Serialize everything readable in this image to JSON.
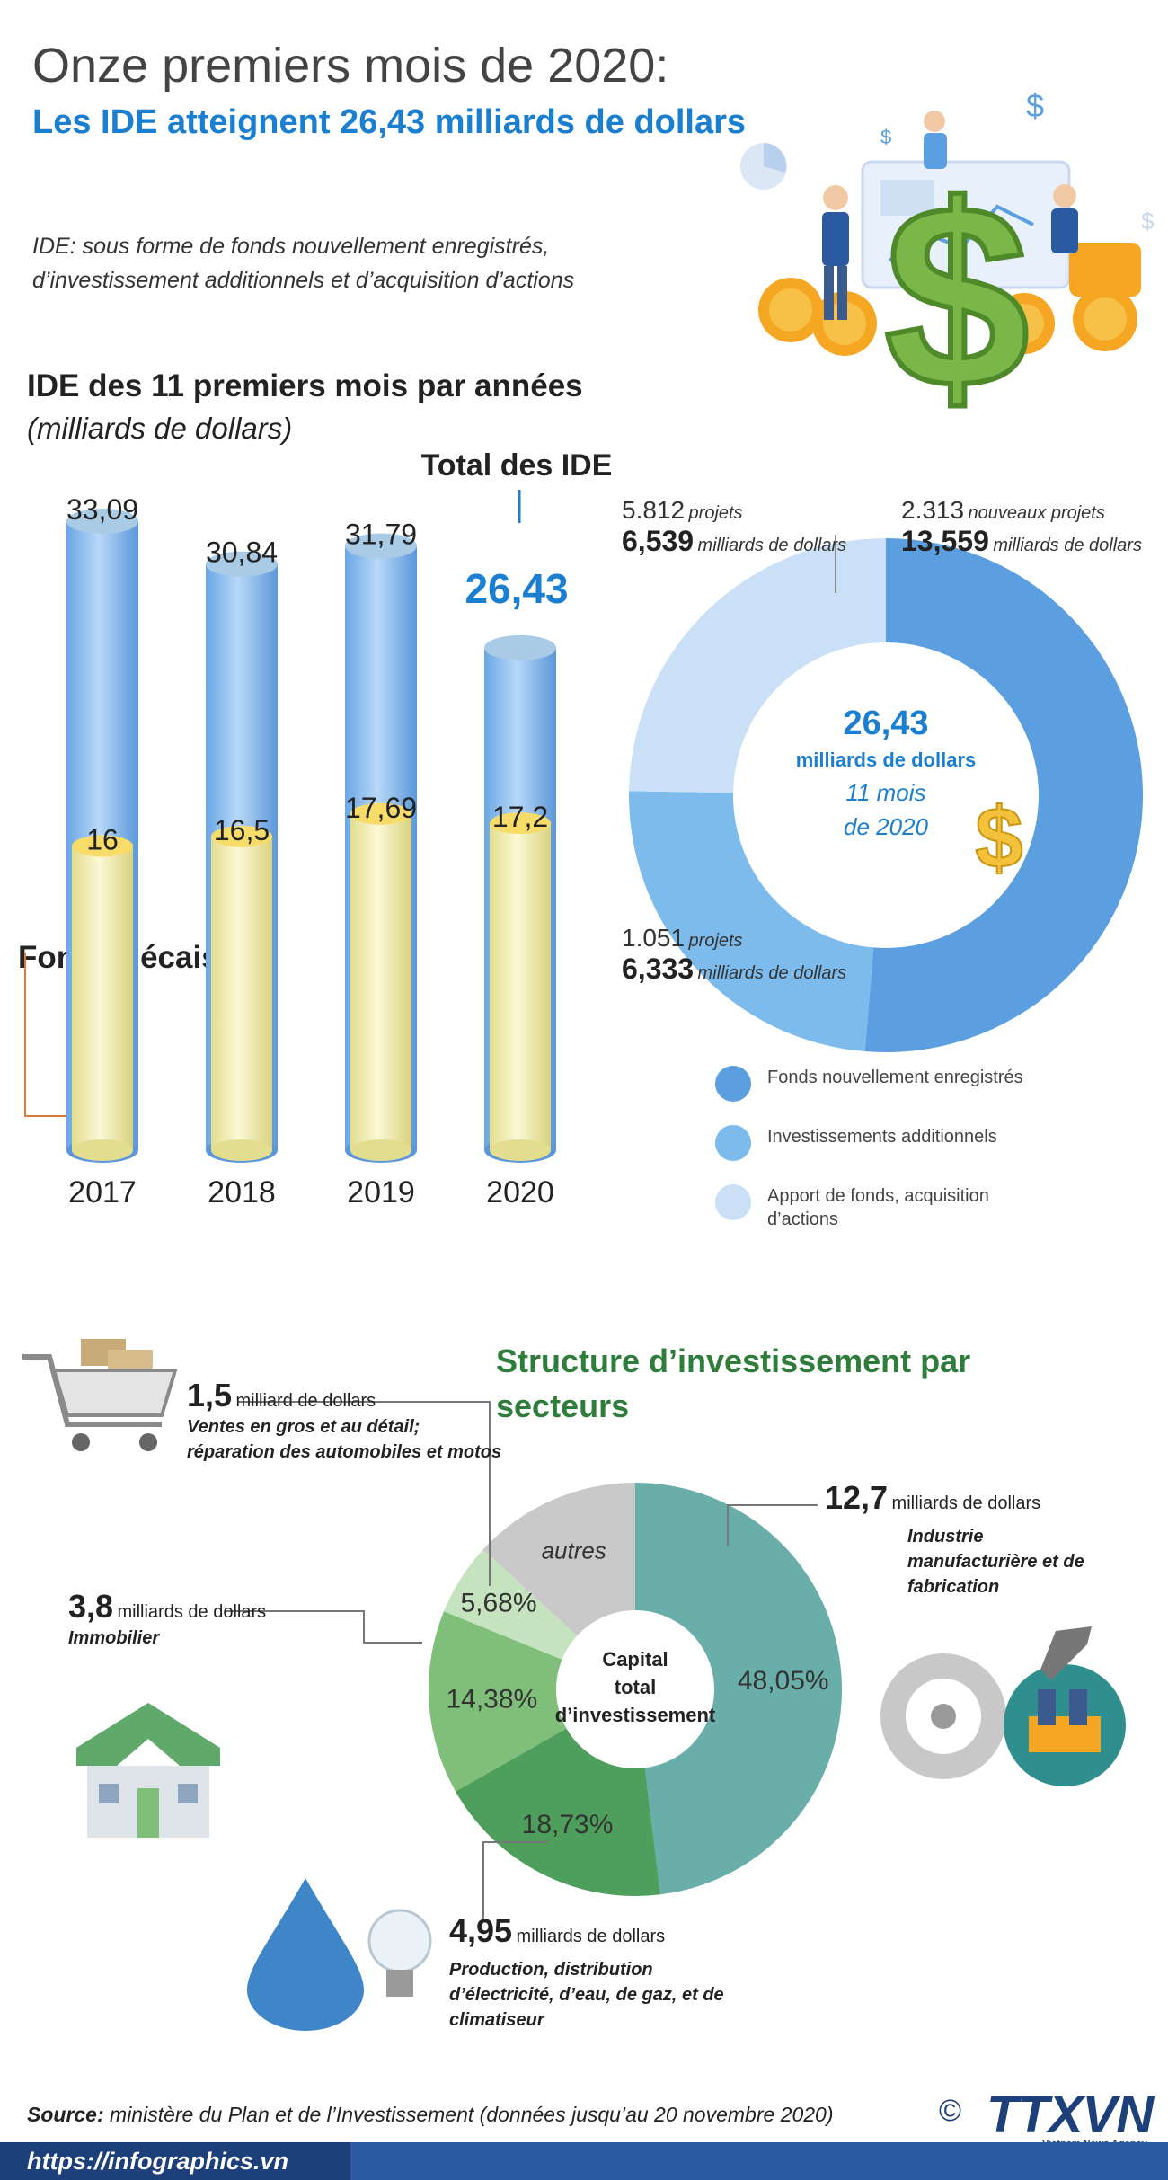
{
  "header": {
    "title": "Onze premiers mois de 2020:",
    "subtitle": "Les IDE atteignent 26,43 milliards de dollars",
    "note": "IDE: sous forme de fonds nouvellement enregistrés, d’investissement additionnels et d’acquisition d’actions"
  },
  "bar_section": {
    "title": "IDE des 11 premiers mois par années",
    "unit": "(milliards de dollars)",
    "total_label": "Total des IDE",
    "total_value": "26,43",
    "disbursed_label": "Fonds décaissés"
  },
  "donut_section": {
    "center_value": "26,43",
    "center_unit": "milliards de dollars",
    "center_period_1": "11 mois",
    "center_period_2": "de 2020",
    "labels": [
      {
        "count": "5.812",
        "count_unit": "projets",
        "amount": "6,539",
        "amount_unit": "milliards de dollars"
      },
      {
        "count": "2.313",
        "count_unit": "nouveaux projets",
        "amount": "13,559",
        "amount_unit": "milliards de dollars"
      },
      {
        "count": "1.051",
        "count_unit": "projets",
        "amount": "6,333",
        "amount_unit": "milliards de dollars"
      }
    ],
    "legend": [
      {
        "label": "Fonds nouvellement enregistrés",
        "color": "#5b9fe0"
      },
      {
        "label": "Investissements additionnels",
        "color": "#7dbbec"
      },
      {
        "label": "Apport de fonds, acquisition d’actions",
        "color": "#c9e0f7"
      }
    ]
  },
  "sector_section": {
    "title": "Structure d’investissement par secteurs",
    "center_label_1": "Capital",
    "center_label_2": "total",
    "center_label_3": "d’investissement",
    "annotations": [
      {
        "value": "1,5",
        "unit": "milliard de dollars",
        "desc": "Ventes en gros et au détail; réparation des automobiles et motos"
      },
      {
        "value": "3,8",
        "unit": "milliards de dollars",
        "desc": "Immobilier"
      },
      {
        "value": "12,7",
        "unit": "milliards de dollars",
        "desc": "Industrie manufacturière et de fabrication"
      },
      {
        "value": "4,95",
        "unit": "milliards de dollars",
        "desc": "Production, distribution d’électricité, d’eau, de gaz, et de climatiseur"
      }
    ]
  },
  "footer": {
    "source_label": "Source:",
    "source_text": " ministère du Plan et de l’Investissement (données jusqu’au 20 novembre 2020)",
    "url": "https://infographics.vn",
    "logo": "TTXVN",
    "logo_sub": "Vietnam News Agency",
    "copyright": "©"
  },
  "chart_data": [
    {
      "type": "bar",
      "categories": [
        "2017",
        "2018",
        "2019",
        "2020"
      ],
      "series": [
        {
          "name": "Total des IDE",
          "values": [
            33.09,
            30.84,
            31.79,
            26.43
          ],
          "labels": [
            "33,09",
            "30,84",
            "31,79",
            "26,43"
          ],
          "color": "#7fb6ea"
        },
        {
          "name": "Fonds décaissés",
          "values": [
            16,
            16.5,
            17.69,
            17.2
          ],
          "labels": [
            "16",
            "16,5",
            "17,69",
            "17,2"
          ],
          "color": "#eeeaa6"
        }
      ],
      "ylim": [
        0,
        35
      ]
    },
    {
      "type": "pie",
      "donut": true,
      "categories": [
        "Fonds nouvellement enregistrés",
        "Investissements additionnels",
        "Apport de fonds, acquisition d’actions"
      ],
      "values": [
        13.559,
        6.333,
        6.539
      ],
      "colors": [
        "#5b9fe0",
        "#7dbbec",
        "#c9e0f7"
      ]
    },
    {
      "type": "pie",
      "donut": true,
      "categories": [
        "Industrie manufacturière et de fabrication",
        "Production, distribution d’électricité, d’eau, de gaz, et de climatiseur",
        "Immobilier",
        "Ventes en gros et au détail; réparation des automobiles et motos",
        "autres"
      ],
      "values": [
        48.05,
        18.73,
        14.38,
        5.68,
        13.16
      ],
      "labels": [
        "48,05%",
        "18,73%",
        "14,38%",
        "5,68%",
        "autres"
      ],
      "colors": [
        "#6aaea9",
        "#4e9e5c",
        "#7fbf7a",
        "#c6e3bf",
        "#c9c9c9"
      ]
    }
  ]
}
